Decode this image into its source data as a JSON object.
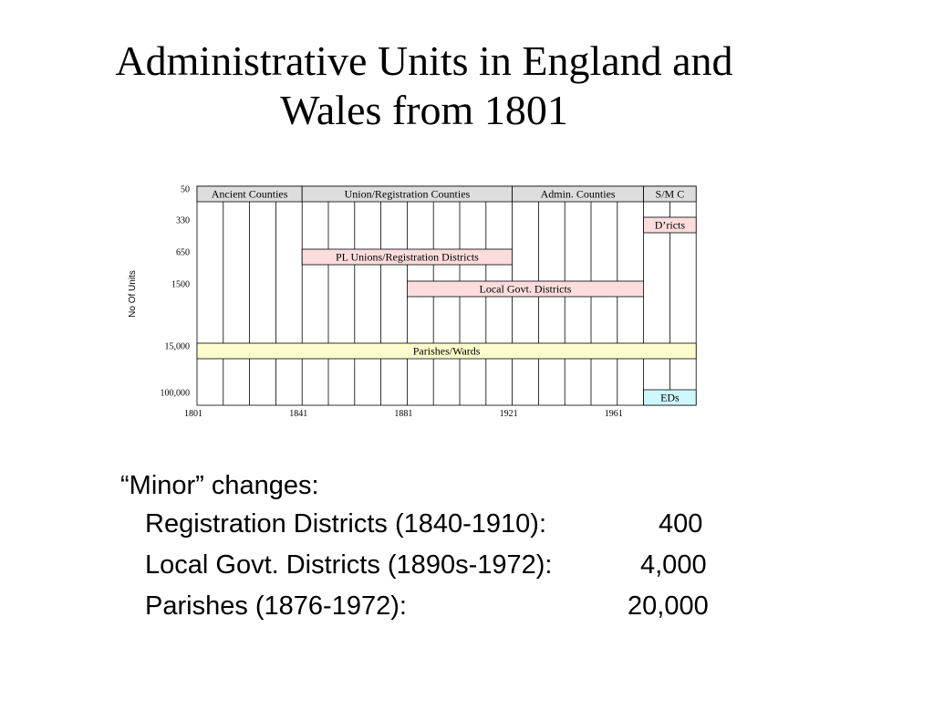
{
  "title": {
    "line1": "Administrative Units in England and",
    "line2": "Wales from 1801"
  },
  "chart_data": {
    "type": "timeline",
    "ylabel": "No Of Units",
    "row_labels": [
      "50",
      "330",
      "650",
      "1500",
      "",
      "15,000",
      "",
      "100,000"
    ],
    "year_labels": [
      "1801",
      "1841",
      "1881",
      "1921",
      "1961"
    ],
    "columns": 19,
    "bars": [
      {
        "label": "Ancient Counties",
        "row": 0,
        "start_col": 0,
        "end_col": 4,
        "color": "#dddddd"
      },
      {
        "label": "Union/Registration Counties",
        "row": 0,
        "start_col": 4,
        "end_col": 12,
        "color": "#dddddd"
      },
      {
        "label": "Admin. Counties",
        "row": 0,
        "start_col": 12,
        "end_col": 17,
        "color": "#dddddd"
      },
      {
        "label": "S/M C",
        "row": 0,
        "start_col": 17,
        "end_col": 19,
        "color": "#dddddd"
      },
      {
        "label": "D’ricts",
        "row": 1,
        "start_col": 17,
        "end_col": 19,
        "color": "#fcdcdc"
      },
      {
        "label": "PL Unions/Registration Districts",
        "row": 2,
        "start_col": 4,
        "end_col": 12,
        "color": "#fcdcdc"
      },
      {
        "label": "Local Govt. Districts",
        "row": 3,
        "start_col": 8,
        "end_col": 17,
        "color": "#fcdcdc"
      },
      {
        "label": "Parishes/Wards",
        "row": 5,
        "start_col": 0,
        "end_col": 19,
        "color": "#fdfccc"
      },
      {
        "label": "EDs",
        "row": 7,
        "start_col": 17,
        "end_col": 19,
        "color": "#ccf8fc"
      }
    ]
  },
  "notes": {
    "heading": "“Minor” changes:",
    "items": [
      {
        "label": "Registration Districts (1840-1910):",
        "value": "400"
      },
      {
        "label": "Local Govt. Districts (1890s-1972):",
        "value": "4,000"
      },
      {
        "label": "Parishes (1876-1972):",
        "value": "20,000"
      }
    ]
  }
}
